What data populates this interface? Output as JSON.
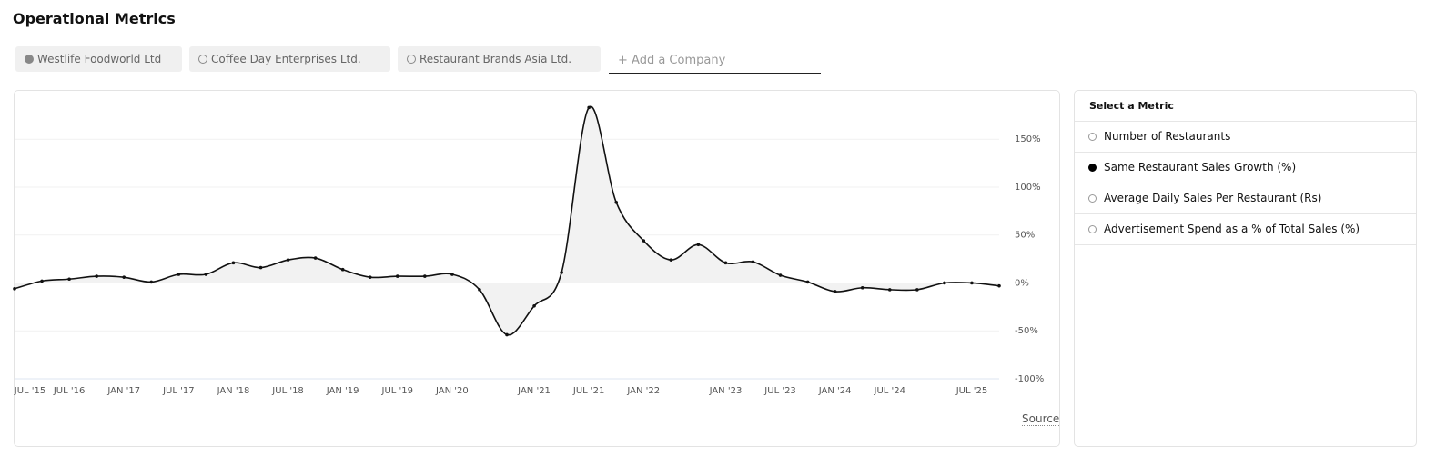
{
  "page_title": "Operational Metrics",
  "other_companies": [
    "Coffee Day Enterprises Ltd.",
    "Restaurant Brands Asia Ltd."
  ],
  "add_company": "+ Add a Company",
  "source": "Source",
  "metric_panel": {
    "title": "Select a Metric",
    "options": [
      "Number of Restaurants",
      "Same Restaurant Sales Growth (%)",
      "Average Daily Sales Per Restaurant (Rs)",
      "Advertisement Spend as a % of Total Sales (%)"
    ],
    "selected": 1
  },
  "chart_data": {
    "type": "line",
    "categories": [
      "JUL '15",
      null,
      "JUL '16",
      null,
      "JAN '17",
      null,
      "JUL '17",
      null,
      "JAN '18",
      null,
      "JUL '18",
      null,
      "JAN '19",
      null,
      "JUL '19",
      null,
      "JAN '20",
      null,
      null,
      "JAN '21",
      null,
      "JUL '21",
      null,
      "JAN '22",
      null,
      null,
      "JAN '23",
      null,
      "JUL '23",
      null,
      "JAN '24",
      null,
      "JUL '24",
      null,
      null,
      "JUL '25",
      null
    ],
    "series": [
      {
        "name": "Westlife Foodworld Ltd",
        "color": "#111111",
        "fill": "#f2f2f2",
        "values": [
          -6,
          2,
          4,
          7,
          6,
          1,
          9,
          9,
          21,
          16,
          24,
          26,
          14,
          6,
          7,
          7,
          9,
          -7,
          -54,
          -24,
          11,
          183,
          84,
          44,
          24,
          40,
          21,
          22,
          8,
          1,
          -9,
          -5,
          -7,
          -7,
          0,
          0,
          -3
        ]
      }
    ],
    "ylim": [
      -100,
      190
    ],
    "yticks": [
      {
        "value": -100,
        "label": "-100%"
      },
      {
        "value": -50,
        "label": "-50%"
      },
      {
        "value": 0,
        "label": "0%"
      },
      {
        "value": 50,
        "label": "50%"
      },
      {
        "value": 100,
        "label": "100%"
      },
      {
        "value": 150,
        "label": "150%"
      }
    ],
    "grid": true
  }
}
